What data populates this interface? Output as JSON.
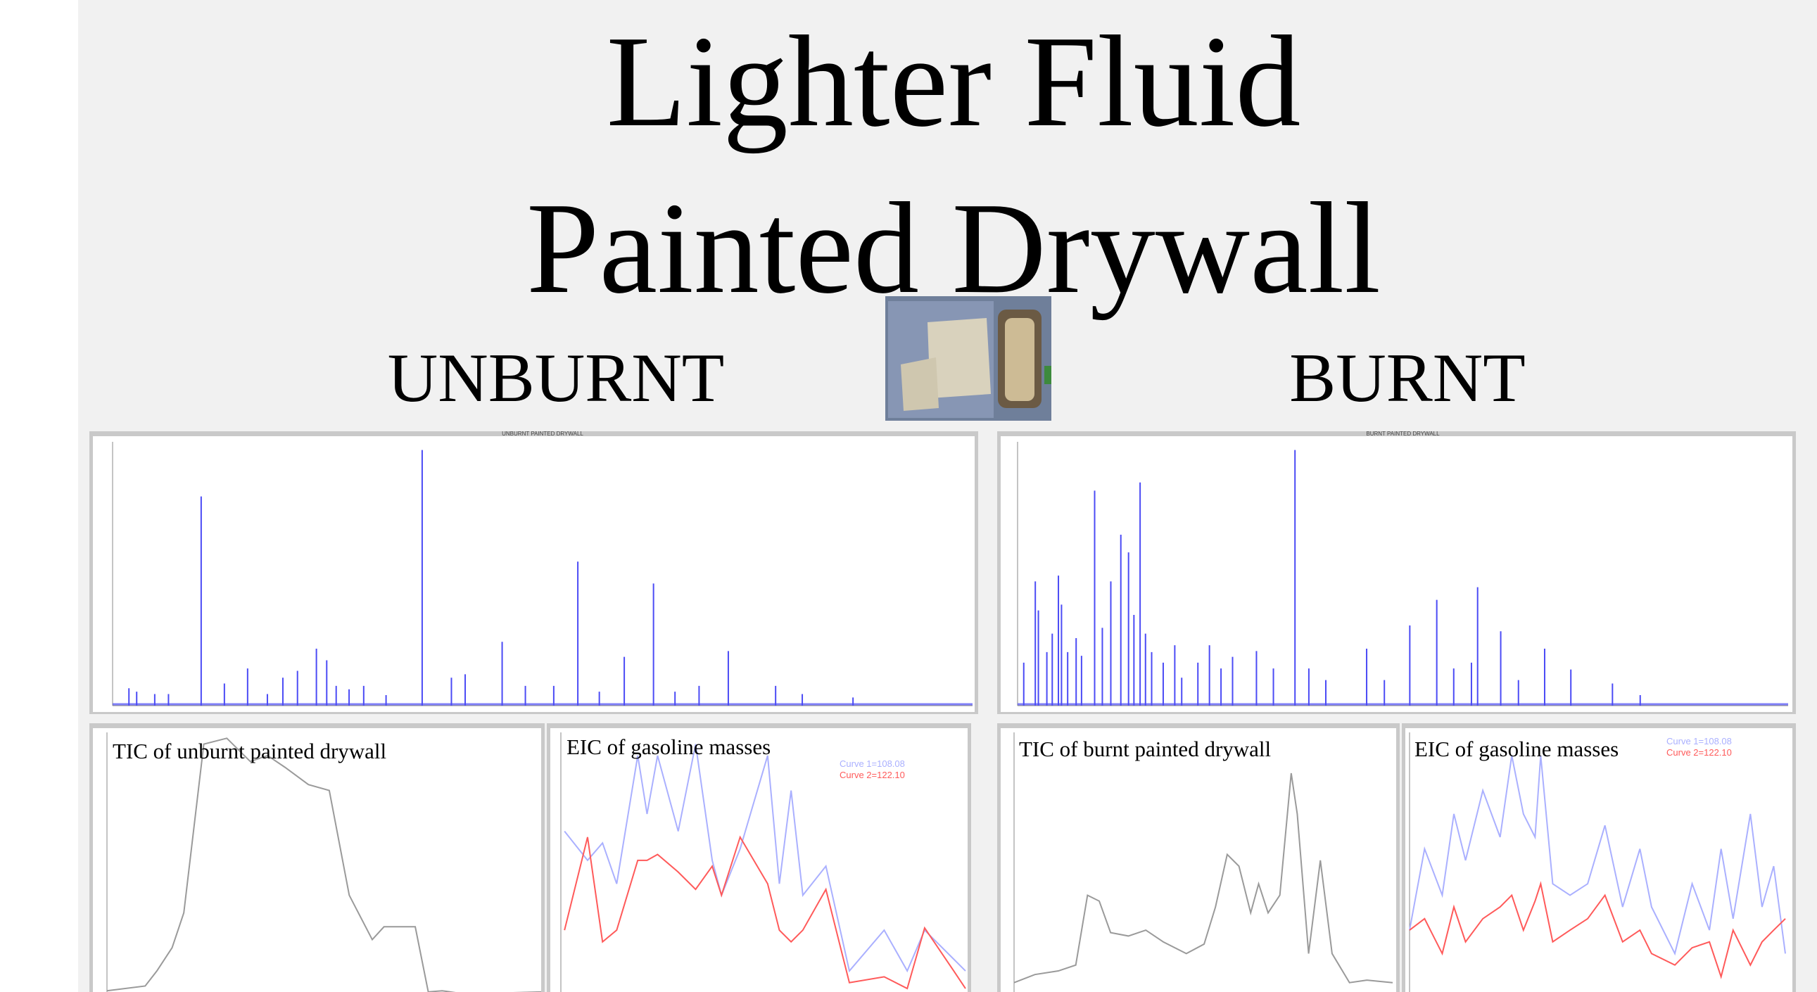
{
  "header": {
    "title_lines": [
      "Lighter Fluid",
      "Painted Drywall"
    ],
    "left_label": "UNBURNT",
    "right_label": "BURNT"
  },
  "chart_data": [
    {
      "type": "spike",
      "title": "UNBURNT PAINTED DRYWALL",
      "color": "#4b4bf5",
      "xlim": [
        0,
        100
      ],
      "ylim": [
        0,
        100
      ],
      "x": [
        1.9,
        2.8,
        4.9,
        6.5,
        10.3,
        13.0,
        15.7,
        18.0,
        19.8,
        21.5,
        23.7,
        24.9,
        26.0,
        27.5,
        29.2,
        31.8,
        36.0,
        39.4,
        41.0,
        45.3,
        48.0,
        51.3,
        54.1,
        56.6,
        59.5,
        62.9,
        65.4,
        68.2,
        71.6,
        77.1,
        80.2,
        86.1
      ],
      "values": [
        6.6,
        5.3,
        4.4,
        4.4,
        79.3,
        8.4,
        14.1,
        4.4,
        10.6,
        13.2,
        21.6,
        17.2,
        7.5,
        6.2,
        7.5,
        4.0,
        96.9,
        10.6,
        11.9,
        24.2,
        7.5,
        7.5,
        54.6,
        5.3,
        18.5,
        46.3,
        5.3,
        7.5,
        20.7,
        7.5,
        4.4,
        3.1
      ]
    },
    {
      "type": "spike",
      "title": "BURNT PAINTED DRYWALL",
      "color": "#4b4bf5",
      "xlim": [
        0,
        100
      ],
      "ylim": [
        0,
        100
      ],
      "x": [
        0.8,
        2.3,
        2.7,
        3.8,
        4.5,
        5.3,
        5.7,
        6.5,
        7.6,
        8.3,
        10.0,
        11.0,
        12.1,
        13.4,
        14.4,
        15.1,
        15.9,
        16.6,
        17.4,
        18.9,
        20.4,
        21.3,
        23.4,
        24.9,
        26.4,
        27.9,
        31.0,
        33.2,
        36.0,
        37.8,
        40.0,
        45.3,
        47.6,
        50.9,
        54.4,
        56.6,
        58.9,
        59.7,
        62.7,
        65.0,
        68.4,
        71.8,
        77.2,
        80.8
      ],
      "values": [
        16.3,
        47.1,
        36.1,
        20.3,
        27.3,
        49.3,
        38.3,
        20.3,
        25.6,
        18.9,
        81.5,
        29.5,
        47.1,
        64.8,
        58.1,
        34.4,
        84.6,
        27.3,
        20.3,
        16.3,
        22.9,
        10.6,
        16.3,
        22.9,
        14.1,
        18.5,
        20.7,
        14.1,
        96.9,
        14.1,
        9.7,
        21.6,
        9.7,
        30.4,
        40.1,
        14.1,
        16.3,
        44.9,
        28.2,
        9.7,
        21.6,
        13.7,
        8.4,
        4.0
      ]
    },
    {
      "type": "line",
      "title": "TIC of unburnt painted drywall",
      "xlim": [
        0,
        100
      ],
      "ylim": [
        0,
        100
      ],
      "x": [
        0,
        8.8,
        11.5,
        15.0,
        17.7,
        20.4,
        22.3,
        27.6,
        33.0,
        37.0,
        41.0,
        46.4,
        51.2,
        55.8,
        61.1,
        63.8,
        71.0,
        74.0,
        77.2,
        82.6,
        100
      ],
      "series": [
        {
          "color": "#9a9a9a",
          "values": [
            7.5,
            9.2,
            14.6,
            22.9,
            35.4,
            70.8,
            95.8,
            97.9,
            89.6,
            91.7,
            87.5,
            81.3,
            79.2,
            41.7,
            25.8,
            30.4,
            30.4,
            7.1,
            7.5,
            6.3,
            7.1
          ]
        }
      ]
    },
    {
      "type": "line",
      "title": "EIC of gasoline masses",
      "xlim": [
        0,
        100
      ],
      "ylim": [
        0,
        100
      ],
      "x": [
        0.9,
        6.6,
        10.3,
        13.8,
        19.0,
        21.3,
        23.9,
        29.0,
        33.3,
        37.4,
        39.7,
        44.3,
        51.1,
        54.0,
        56.9,
        59.8,
        65.5,
        71.3,
        79.9,
        85.6,
        89.9,
        97.1,
        100
      ],
      "series": [
        {
          "name": "Curve 1=108.08",
          "color": "#aab0ff",
          "values": [
            64.6,
            54.2,
            60.4,
            45.8,
            91.7,
            70.8,
            91.7,
            64.6,
            95.8,
            54.2,
            41.7,
            58.3,
            91.7,
            45.8,
            79.2,
            41.7,
            52.1,
            14.6,
            29.2,
            14.6,
            29.2,
            18.8,
            14.6
          ]
        },
        {
          "name": "Curve 2=122.10",
          "color": "#ff5a5a",
          "values": [
            29.2,
            62.5,
            25.0,
            29.2,
            54.2,
            54.2,
            56.3,
            50.0,
            43.8,
            52.1,
            41.7,
            62.5,
            45.8,
            29.2,
            25.0,
            29.2,
            43.8,
            10.4,
            12.5,
            8.3,
            30.0,
            14.6,
            8.3
          ]
        }
      ]
    },
    {
      "type": "line",
      "title": "TIC of burnt painted drywall",
      "xlim": [
        0,
        100
      ],
      "ylim": [
        0,
        100
      ],
      "x": [
        0,
        5.5,
        11.7,
        16.3,
        19.4,
        22.5,
        25.5,
        30.2,
        34.8,
        39.4,
        45.5,
        50.2,
        53.2,
        56.3,
        59.4,
        62.5,
        64.6,
        67.1,
        70.2,
        73.2,
        74.8,
        77.8,
        80.9,
        84.0,
        88.6,
        93.2,
        100
      ],
      "series": [
        {
          "color": "#9a9a9a",
          "values": [
            10.4,
            13.3,
            14.6,
            16.7,
            41.7,
            39.6,
            28.3,
            27.1,
            29.2,
            25.0,
            20.8,
            24.2,
            37.5,
            56.3,
            52.1,
            35.4,
            45.8,
            35.4,
            41.7,
            85.4,
            70.8,
            20.8,
            54.2,
            20.8,
            10.4,
            11.3,
            10.4
          ]
        }
      ]
    },
    {
      "type": "line",
      "title": "EIC of gasoline masses",
      "xlim": [
        0,
        100
      ],
      "ylim": [
        0,
        100
      ],
      "x": [
        0,
        4.0,
        8.7,
        11.8,
        14.9,
        19.5,
        24.1,
        27.2,
        30.3,
        33.4,
        34.9,
        38.1,
        42.7,
        47.4,
        52.0,
        56.7,
        61.3,
        64.4,
        70.6,
        75.2,
        79.8,
        82.9,
        86.1,
        90.7,
        93.8,
        96.9,
        100
      ],
      "series": [
        {
          "name": "Curve 1=108.08",
          "color": "#aab0ff",
          "values": [
            29.2,
            58.3,
            41.7,
            70.8,
            54.2,
            79.2,
            62.5,
            91.7,
            70.8,
            62.5,
            91.7,
            45.8,
            41.7,
            45.8,
            66.7,
            37.5,
            58.3,
            37.5,
            20.8,
            45.8,
            29.2,
            58.3,
            33.3,
            70.8,
            37.5,
            52.1,
            20.8
          ]
        },
        {
          "name": "Curve 2=122.10",
          "color": "#ff5a5a",
          "values": [
            29.2,
            33.3,
            20.8,
            37.5,
            25.0,
            33.3,
            37.5,
            41.7,
            29.2,
            39.6,
            45.8,
            25.0,
            29.2,
            33.3,
            41.7,
            25.0,
            29.2,
            20.8,
            16.7,
            22.9,
            25.0,
            12.5,
            29.2,
            16.7,
            25.0,
            29.2,
            33.3
          ]
        }
      ]
    }
  ]
}
